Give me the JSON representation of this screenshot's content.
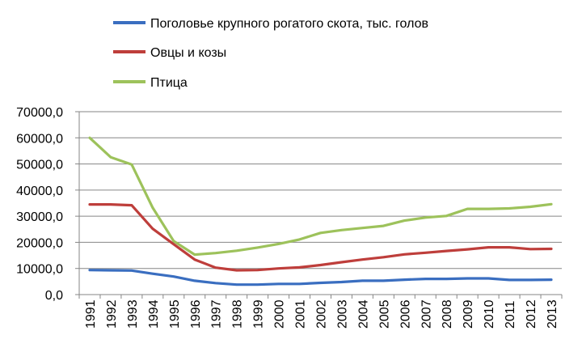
{
  "chart_data": {
    "type": "line",
    "title": "",
    "xlabel": "",
    "ylabel": "",
    "x": [
      "1991",
      "1992",
      "1993",
      "1994",
      "1995",
      "1996",
      "1997",
      "1998",
      "1999",
      "2000",
      "2001",
      "2002",
      "2003",
      "2004",
      "2005",
      "2006",
      "2007",
      "2008",
      "2009",
      "2010",
      "2011",
      "2012",
      "2013"
    ],
    "ylim": [
      0,
      70000
    ],
    "yticks": [
      "0,0",
      "10000,0",
      "20000,0",
      "30000,0",
      "40000,0",
      "50000,0",
      "60000,0",
      "70000,0"
    ],
    "grid": true,
    "legend_position": "top-left",
    "series": [
      {
        "name": "Поголовье крупного рогатого скота, тыс. голов",
        "color": "#3A6EC0",
        "values": [
          9400,
          9300,
          9200,
          8000,
          6900,
          5300,
          4400,
          3800,
          3800,
          4100,
          4100,
          4500,
          4800,
          5300,
          5300,
          5700,
          6000,
          6000,
          6200,
          6200,
          5600,
          5600,
          5700
        ]
      },
      {
        "name": "Овцы и козы",
        "color": "#BE3E3B",
        "values": [
          34500,
          34500,
          34200,
          25200,
          19300,
          13400,
          10300,
          9300,
          9400,
          10000,
          10400,
          11300,
          12400,
          13400,
          14300,
          15400,
          16000,
          16700,
          17300,
          18100,
          18100,
          17400,
          17500
        ]
      },
      {
        "name": "Птица",
        "color": "#9DC25B",
        "values": [
          60000,
          52600,
          49800,
          33300,
          20500,
          15300,
          15900,
          16800,
          18000,
          19400,
          21100,
          23600,
          24700,
          25500,
          26300,
          28300,
          29500,
          30100,
          32800,
          32800,
          33000,
          33600,
          34600
        ]
      }
    ]
  }
}
